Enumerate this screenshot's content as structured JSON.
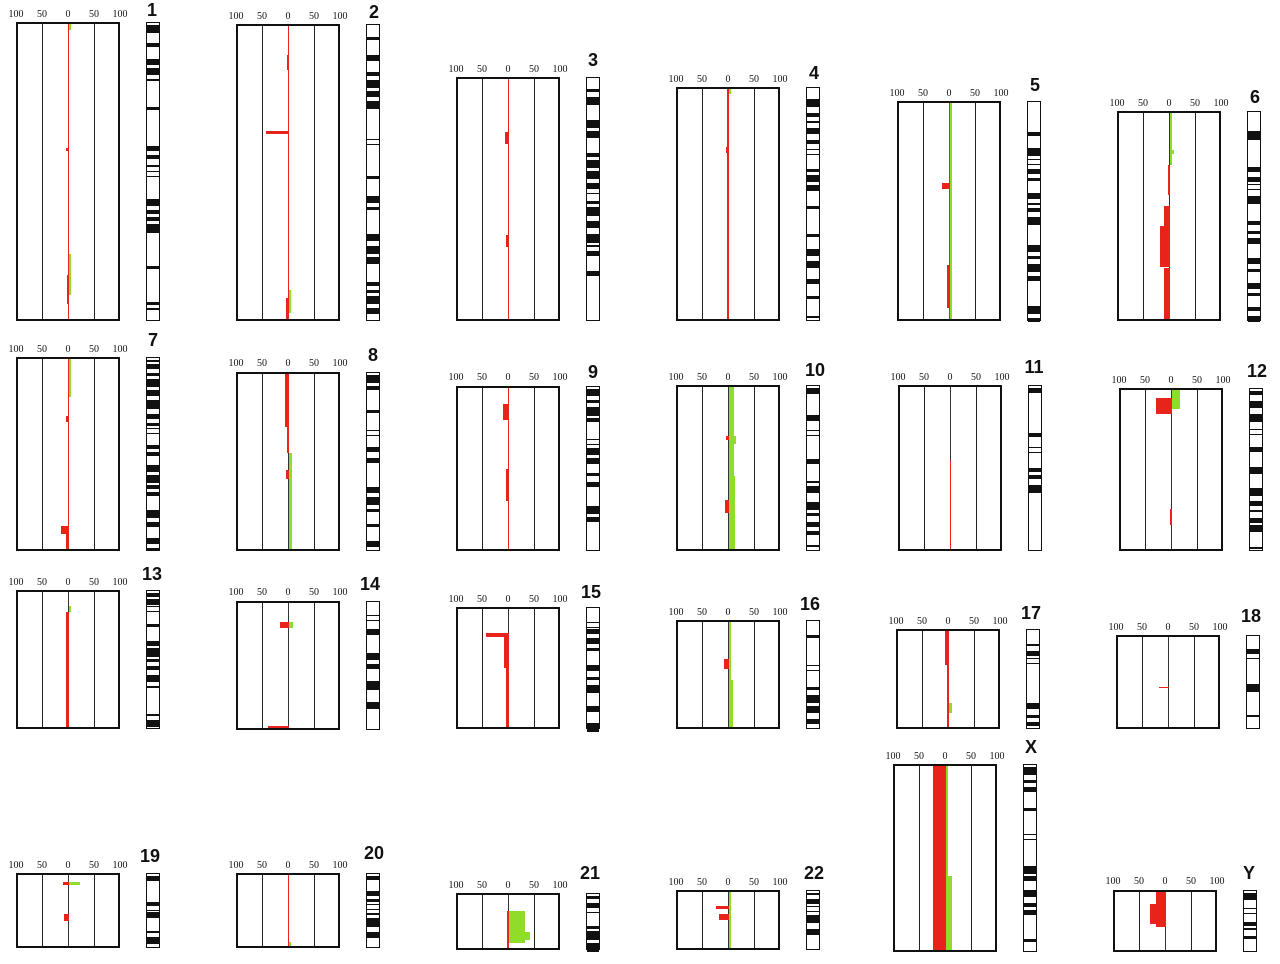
{
  "chart_data": {
    "type": "bar",
    "orientation": "horizontal profiles along chromosome",
    "axis_ticks": [
      "100",
      "50",
      "0",
      "50",
      "100"
    ],
    "xlim": [
      -100,
      100
    ],
    "colors": {
      "loss": "#e8231b",
      "gain": "#8fdc2a",
      "frame": "#111111"
    },
    "segment_format": "[start % of chromosome length, end %, frequency %]",
    "panels": [
      {
        "label": "1",
        "loss": [
          [
            0,
            100,
            1
          ],
          [
            42,
            43,
            6
          ],
          [
            85,
            95,
            3
          ],
          [
            93,
            100,
            2
          ]
        ],
        "gain": [
          [
            0,
            2,
            3
          ],
          [
            78,
            92,
            3
          ]
        ]
      },
      {
        "label": "2",
        "loss": [
          [
            0,
            100,
            1
          ],
          [
            10,
            15,
            3
          ],
          [
            36,
            37,
            45
          ],
          [
            93,
            100,
            5
          ]
        ],
        "gain": [
          [
            90,
            98,
            4
          ]
        ]
      },
      {
        "label": "3",
        "loss": [
          [
            0,
            100,
            2
          ],
          [
            22,
            27,
            8
          ],
          [
            65,
            70,
            5
          ]
        ],
        "gain": []
      },
      {
        "label": "4",
        "loss": [
          [
            0,
            100,
            4
          ],
          [
            25,
            28,
            6
          ]
        ],
        "gain": [
          [
            0,
            2,
            3
          ]
        ]
      },
      {
        "label": "5",
        "loss": [
          [
            0,
            100,
            2
          ],
          [
            37,
            40,
            15
          ],
          [
            75,
            95,
            5
          ]
        ],
        "gain": [
          [
            0,
            100,
            3
          ]
        ]
      },
      {
        "label": "6",
        "loss": [
          [
            25,
            40,
            3
          ],
          [
            45,
            55,
            12
          ],
          [
            55,
            75,
            20
          ],
          [
            75,
            100,
            12
          ]
        ],
        "gain": [
          [
            0,
            25,
            3
          ],
          [
            18,
            20,
            8
          ]
        ]
      },
      {
        "label": "7",
        "loss": [
          [
            0,
            100,
            2
          ],
          [
            30,
            33,
            5
          ],
          [
            88,
            92,
            15
          ],
          [
            90,
            100,
            6
          ]
        ],
        "gain": [
          [
            0,
            20,
            2
          ]
        ]
      },
      {
        "label": "8",
        "loss": [
          [
            0,
            30,
            8
          ],
          [
            30,
            45,
            3
          ],
          [
            55,
            60,
            5
          ]
        ],
        "gain": [
          [
            45,
            100,
            6
          ]
        ]
      },
      {
        "label": "9",
        "loss": [
          [
            0,
            100,
            2
          ],
          [
            10,
            20,
            12
          ],
          [
            50,
            70,
            5
          ]
        ],
        "gain": []
      },
      {
        "label": "10",
        "loss": [
          [
            30,
            33,
            6
          ],
          [
            70,
            78,
            8
          ]
        ],
        "gain": [
          [
            0,
            100,
            10
          ],
          [
            30,
            35,
            14
          ],
          [
            55,
            100,
            12
          ]
        ]
      },
      {
        "label": "11",
        "loss": [
          [
            45,
            100,
            2
          ]
        ],
        "gain": []
      },
      {
        "label": "12",
        "loss": [
          [
            5,
            15,
            30
          ],
          [
            75,
            85,
            3
          ]
        ],
        "gain": [
          [
            0,
            12,
            15
          ]
        ]
      },
      {
        "label": "13",
        "loss": [
          [
            15,
            100,
            6
          ]
        ],
        "gain": [
          [
            10,
            15,
            3
          ]
        ]
      },
      {
        "label": "14",
        "loss": [
          [
            15,
            20,
            18
          ],
          [
            98,
            100,
            40
          ]
        ],
        "gain": [
          [
            15,
            20,
            8
          ]
        ]
      },
      {
        "label": "15",
        "loss": [
          [
            20,
            24,
            45
          ],
          [
            24,
            50,
            10
          ],
          [
            50,
            100,
            5
          ]
        ],
        "gain": []
      },
      {
        "label": "16",
        "loss": [
          [
            35,
            45,
            10
          ]
        ],
        "gain": [
          [
            0,
            100,
            4
          ],
          [
            55,
            100,
            8
          ]
        ]
      },
      {
        "label": "17",
        "loss": [
          [
            0,
            35,
            8
          ],
          [
            35,
            100,
            4
          ]
        ],
        "gain": [
          [
            75,
            85,
            5
          ]
        ]
      },
      {
        "label": "18",
        "loss": [
          [
            55,
            57,
            20
          ]
        ],
        "gain": []
      },
      {
        "label": "19",
        "loss": [
          [
            10,
            14,
            12
          ],
          [
            55,
            65,
            10
          ]
        ],
        "gain": [
          [
            10,
            14,
            22
          ]
        ]
      },
      {
        "label": "20",
        "loss": [
          [
            0,
            100,
            2
          ]
        ],
        "gain": [
          [
            95,
            100,
            3
          ]
        ]
      },
      {
        "label": "21",
        "loss": [
          [
            30,
            100,
            3
          ]
        ],
        "gain": [
          [
            30,
            90,
            30
          ],
          [
            70,
            85,
            40
          ]
        ]
      },
      {
        "label": "22",
        "loss": [
          [
            25,
            30,
            25
          ],
          [
            40,
            50,
            20
          ]
        ],
        "gain": [
          [
            0,
            100,
            3
          ]
        ]
      },
      {
        "label": "X",
        "loss": [
          [
            0,
            100,
            25
          ]
        ],
        "gain": [
          [
            0,
            100,
            3
          ],
          [
            60,
            100,
            12
          ]
        ]
      },
      {
        "label": "Y",
        "loss": [
          [
            0,
            60,
            20
          ],
          [
            20,
            55,
            30
          ]
        ],
        "gain": []
      }
    ]
  }
}
